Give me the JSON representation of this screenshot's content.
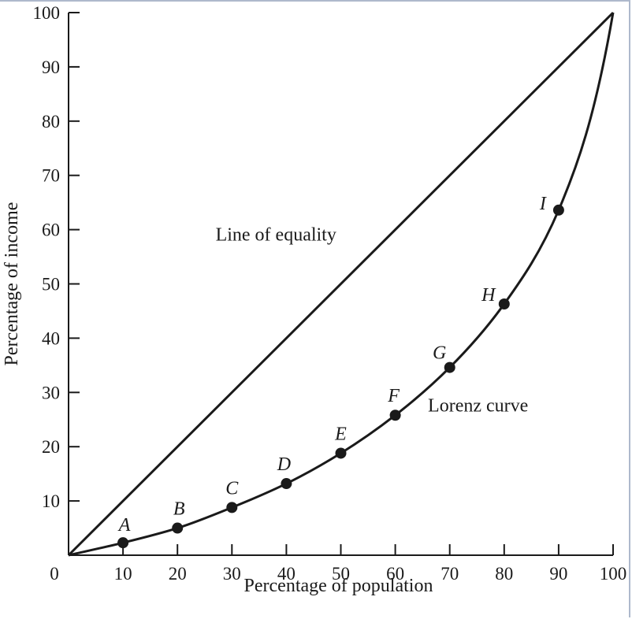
{
  "chart_data": {
    "type": "line",
    "xlabel": "Percentage of population",
    "ylabel": "Percentage of income",
    "xlim": [
      0,
      100
    ],
    "ylim": [
      0,
      100
    ],
    "x_ticks": [
      "10",
      "20",
      "30",
      "40",
      "50",
      "60",
      "70",
      "80",
      "90",
      "100"
    ],
    "y_ticks": [
      "10",
      "20",
      "30",
      "40",
      "50",
      "60",
      "70",
      "80",
      "90",
      "100"
    ],
    "origin_label": "0",
    "grid": false,
    "series": [
      {
        "name": "Line of equality",
        "x": [
          0,
          100
        ],
        "y": [
          0,
          100
        ]
      },
      {
        "name": "Lorenz curve",
        "x": [
          0,
          10,
          20,
          30,
          40,
          50,
          60,
          70,
          80,
          90,
          100
        ],
        "y": [
          0,
          2.3,
          5.0,
          8.8,
          13.2,
          18.8,
          25.8,
          34.6,
          46.3,
          63.6,
          100
        ]
      }
    ],
    "points": [
      {
        "label": "A",
        "x": 10,
        "y": 2.3
      },
      {
        "label": "B",
        "x": 20,
        "y": 5.0
      },
      {
        "label": "C",
        "x": 30,
        "y": 8.8
      },
      {
        "label": "D",
        "x": 40,
        "y": 13.2
      },
      {
        "label": "E",
        "x": 50,
        "y": 18.8
      },
      {
        "label": "F",
        "x": 60,
        "y": 25.8
      },
      {
        "label": "G",
        "x": 70,
        "y": 34.6
      },
      {
        "label": "H",
        "x": 80,
        "y": 46.3
      },
      {
        "label": "I",
        "x": 90,
        "y": 63.6
      }
    ],
    "annotations": [
      {
        "text": "Line of equality",
        "x": 27,
        "y": 58
      },
      {
        "text": "Lorenz curve",
        "x": 66,
        "y": 26.5
      }
    ],
    "colors": {
      "line": "#1a1a1a",
      "frame": "#aeb9cc"
    }
  }
}
